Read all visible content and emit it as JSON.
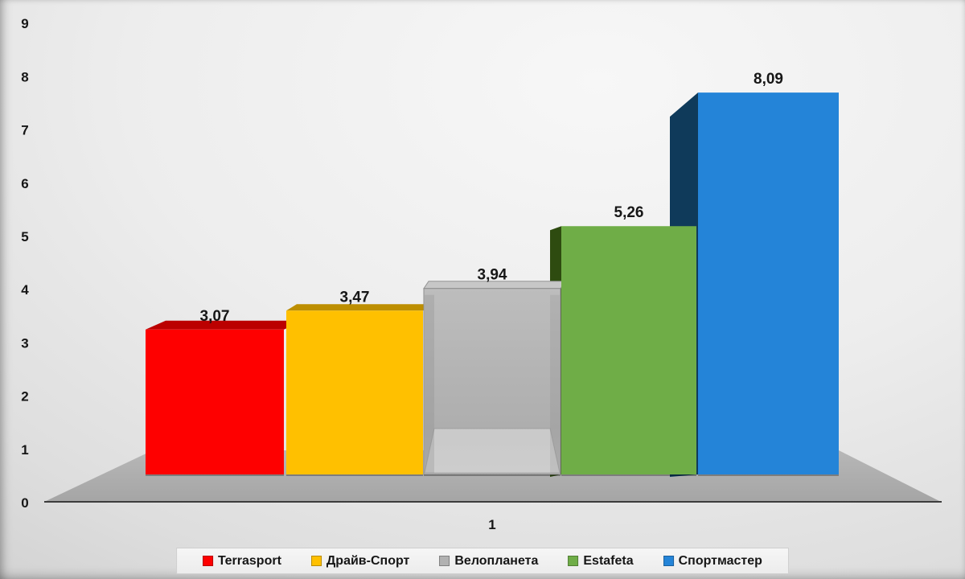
{
  "chart_data": {
    "type": "bar",
    "style": "3d-perspective-columns",
    "title": "",
    "xlabel": "",
    "ylabel": "",
    "categories": [
      "1"
    ],
    "series": [
      {
        "name": "Terrasport",
        "values": [
          3.07
        ],
        "data_label": "3,07",
        "color": "#fe0000",
        "shade_color": "#bb0000"
      },
      {
        "name": "Драйв-Спорт",
        "values": [
          3.47
        ],
        "data_label": "3,47",
        "color": "#ffc000",
        "shade_color": "#bd8e00"
      },
      {
        "name": "Велопланета",
        "values": [
          3.94
        ],
        "data_label": "3,94",
        "color": "#b1b1b1",
        "shade_color": "#c7c7c7"
      },
      {
        "name": "Estafeta",
        "values": [
          5.26
        ],
        "data_label": "5,26",
        "color": "#6fad47",
        "shade_color": "#2e4b10"
      },
      {
        "name": "Спортмастер",
        "values": [
          8.09
        ],
        "data_label": "8,09",
        "color": "#2484d8",
        "shade_color": "#0f3a5a"
      }
    ],
    "y_ticks": [
      "0",
      "1",
      "2",
      "3",
      "4",
      "5",
      "6",
      "7",
      "8",
      "9"
    ],
    "ylim": [
      0,
      9
    ],
    "grid": false,
    "legend_position": "bottom",
    "text_color": "#161616",
    "floor_color": "#aeaeae",
    "axis_line_color": "#3c3c3c"
  }
}
